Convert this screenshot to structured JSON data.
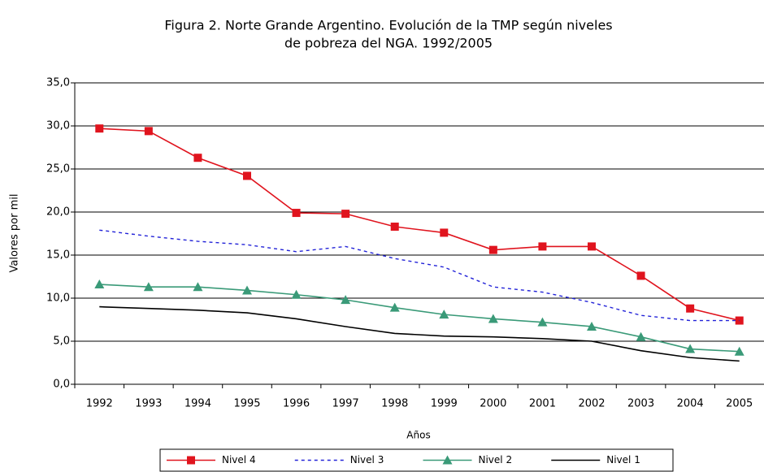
{
  "chart_data": {
    "type": "line",
    "title": [
      "Figura 2. Norte Grande Argentino. Evolución de la TMP según niveles",
      "de pobreza del NGA. 1992/2005"
    ],
    "x_label": "Años",
    "y_label": "Valores por mil",
    "categories": [
      "1992",
      "1993",
      "1994",
      "1995",
      "1996",
      "1997",
      "1998",
      "1999",
      "2000",
      "2001",
      "2002",
      "2003",
      "2004",
      "2005"
    ],
    "ylim": [
      0,
      35
    ],
    "yticks": [
      {
        "value": 0,
        "label": "0,0"
      },
      {
        "value": 5,
        "label": "5,0"
      },
      {
        "value": 10,
        "label": "10,0"
      },
      {
        "value": 15,
        "label": "15,0"
      },
      {
        "value": 20,
        "label": "20,0"
      },
      {
        "value": 25,
        "label": "25,0"
      },
      {
        "value": 30,
        "label": "30,0"
      },
      {
        "value": 35,
        "label": "35,0"
      }
    ],
    "grid": true,
    "legend": "bottom",
    "series": [
      {
        "name": "Nivel 4",
        "color": "#e0141e",
        "marker": "square",
        "dash": "solid",
        "values": [
          29.7,
          29.4,
          26.3,
          24.2,
          19.9,
          19.8,
          18.3,
          17.6,
          15.6,
          16.0,
          16.0,
          12.6,
          8.8,
          7.4
        ]
      },
      {
        "name": "Nivel 3",
        "color": "#2323d8",
        "marker": "none",
        "dash": "dashed",
        "values": [
          17.9,
          17.2,
          16.6,
          16.2,
          15.4,
          16.0,
          14.6,
          13.6,
          11.3,
          10.7,
          9.5,
          8.0,
          7.4,
          7.4
        ]
      },
      {
        "name": "Nivel 2",
        "color": "#3a9a78",
        "marker": "triangle",
        "dash": "solid",
        "values": [
          11.6,
          11.3,
          11.3,
          10.9,
          10.4,
          9.8,
          8.9,
          8.1,
          7.6,
          7.2,
          6.7,
          5.5,
          4.1,
          3.8
        ]
      },
      {
        "name": "Nivel 1",
        "color": "#000000",
        "marker": "none",
        "dash": "solid",
        "values": [
          9.0,
          8.8,
          8.6,
          8.3,
          7.6,
          6.7,
          5.9,
          5.6,
          5.5,
          5.3,
          5.0,
          3.9,
          3.1,
          2.7
        ]
      }
    ]
  }
}
